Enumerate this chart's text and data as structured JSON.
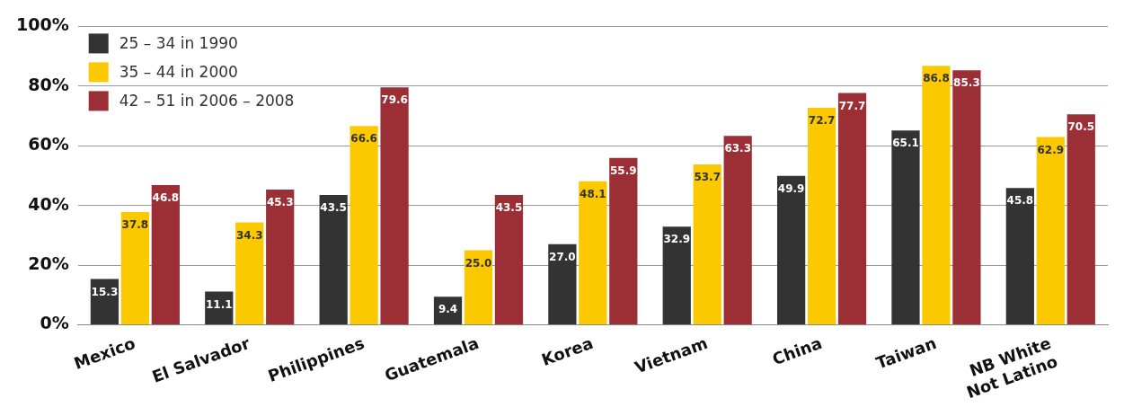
{
  "chart_data": {
    "type": "bar",
    "categories": [
      "Mexico",
      "El Salvador",
      "Philippines",
      "Guatemala",
      "Korea",
      "Vietnam",
      "China",
      "Taiwan",
      "NB White\nNot Latino"
    ],
    "series": [
      {
        "name": "25 – 34 in 1990",
        "color": "#333333",
        "values": [
          15.3,
          11.1,
          43.5,
          9.4,
          27,
          32.9,
          49.9,
          65.1,
          45.8
        ],
        "value_labels": [
          "15.3",
          "11.1",
          "43.5",
          "9.4",
          "27.0",
          "32.9",
          "49.9",
          "65.1",
          "45.8"
        ]
      },
      {
        "name": "35 – 44 in 2000",
        "color": "#fcc800",
        "values": [
          37.8,
          34.3,
          66.6,
          25,
          48.1,
          53.7,
          72.7,
          86.8,
          62.9
        ],
        "value_labels": [
          "37.8",
          "34.3",
          "66.6",
          "25.0",
          "48.1",
          "53.7",
          "72.7",
          "86.8",
          "62.9"
        ]
      },
      {
        "name": "42 – 51 in 2006 – 2008",
        "color": "#9b2f35",
        "values": [
          46.8,
          45.3,
          79.6,
          43.5,
          55.9,
          63.3,
          77.7,
          85.3,
          70.5
        ],
        "value_labels": [
          "46.8",
          "45.3",
          "79.6",
          "43.5",
          "55.9",
          "63.3",
          "77.7",
          "85.3",
          "70.5"
        ]
      }
    ],
    "ylim": [
      0,
      100
    ],
    "yticks": [
      {
        "value": 0,
        "label": "0%"
      },
      {
        "value": 20,
        "label": "20%"
      },
      {
        "value": 40,
        "label": "40%"
      },
      {
        "value": 60,
        "label": "60%"
      },
      {
        "value": 80,
        "label": "80%"
      },
      {
        "value": 100,
        "label": "100%"
      }
    ],
    "grid": "y",
    "legend": "top left"
  }
}
